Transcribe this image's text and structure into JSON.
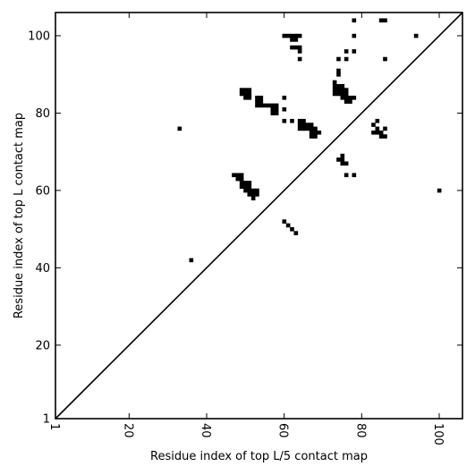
{
  "chart_data": {
    "type": "scatter",
    "title": "",
    "xlabel": "Residue index of top L/5 contact map",
    "ylabel": "Residue index of top L contact map",
    "xlim": [
      1,
      106
    ],
    "ylim": [
      1,
      106
    ],
    "xticks": [
      1,
      20,
      40,
      60,
      80,
      100
    ],
    "yticks": [
      1,
      20,
      40,
      60,
      80,
      100
    ],
    "xtick_labels": [
      "1",
      "20",
      "40",
      "60",
      "80",
      "100"
    ],
    "ytick_labels": [
      "1",
      "20",
      "40",
      "60",
      "80",
      "100"
    ],
    "grid": false,
    "diagonal": true,
    "marker_color": "#000000",
    "points": [
      [
        33,
        76
      ],
      [
        36,
        42
      ],
      [
        60,
        52
      ],
      [
        61,
        51
      ],
      [
        62,
        50
      ],
      [
        63,
        49
      ],
      [
        100,
        60
      ],
      [
        94,
        100
      ],
      [
        86,
        104
      ],
      [
        85,
        104
      ],
      [
        78,
        104
      ],
      [
        78,
        100
      ],
      [
        78,
        96
      ],
      [
        76,
        96
      ],
      [
        76,
        94
      ],
      [
        74,
        94
      ],
      [
        86,
        94
      ],
      [
        60,
        100
      ],
      [
        61,
        100
      ],
      [
        62,
        100
      ],
      [
        63,
        100
      ],
      [
        64,
        100
      ],
      [
        62,
        99
      ],
      [
        63,
        99
      ],
      [
        62,
        97
      ],
      [
        63,
        97
      ],
      [
        64,
        97
      ],
      [
        64,
        96
      ],
      [
        64,
        94
      ],
      [
        74,
        91
      ],
      [
        74,
        90
      ],
      [
        73,
        88
      ],
      [
        73,
        87
      ],
      [
        74,
        87
      ],
      [
        75,
        87
      ],
      [
        73,
        86
      ],
      [
        74,
        86
      ],
      [
        75,
        86
      ],
      [
        76,
        86
      ],
      [
        73,
        85
      ],
      [
        74,
        85
      ],
      [
        75,
        85
      ],
      [
        76,
        85
      ],
      [
        76,
        84
      ],
      [
        77,
        84
      ],
      [
        78,
        84
      ],
      [
        75,
        84
      ],
      [
        76,
        83
      ],
      [
        77,
        83
      ],
      [
        49,
        86
      ],
      [
        50,
        86
      ],
      [
        51,
        86
      ],
      [
        49,
        85
      ],
      [
        50,
        85
      ],
      [
        51,
        85
      ],
      [
        50,
        84
      ],
      [
        51,
        84
      ],
      [
        53,
        84
      ],
      [
        54,
        84
      ],
      [
        53,
        83
      ],
      [
        54,
        83
      ],
      [
        53,
        82
      ],
      [
        54,
        82
      ],
      [
        55,
        82
      ],
      [
        56,
        82
      ],
      [
        57,
        82
      ],
      [
        58,
        82
      ],
      [
        57,
        81
      ],
      [
        58,
        81
      ],
      [
        57,
        80
      ],
      [
        58,
        80
      ],
      [
        60,
        84
      ],
      [
        60,
        81
      ],
      [
        60,
        78
      ],
      [
        62,
        78
      ],
      [
        64,
        78
      ],
      [
        65,
        78
      ],
      [
        64,
        77
      ],
      [
        65,
        77
      ],
      [
        66,
        77
      ],
      [
        67,
        77
      ],
      [
        64,
        76
      ],
      [
        65,
        76
      ],
      [
        66,
        76
      ],
      [
        67,
        76
      ],
      [
        68,
        76
      ],
      [
        67,
        75
      ],
      [
        68,
        75
      ],
      [
        69,
        75
      ],
      [
        67,
        74
      ],
      [
        68,
        74
      ],
      [
        74,
        68
      ],
      [
        75,
        68
      ],
      [
        75,
        69
      ],
      [
        75,
        67
      ],
      [
        76,
        67
      ],
      [
        76,
        64
      ],
      [
        78,
        64
      ],
      [
        84,
        78
      ],
      [
        83,
        77
      ],
      [
        84,
        76
      ],
      [
        86,
        76
      ],
      [
        83,
        75
      ],
      [
        84,
        75
      ],
      [
        85,
        75
      ],
      [
        85,
        74
      ],
      [
        86,
        74
      ],
      [
        47,
        64
      ],
      [
        48,
        64
      ],
      [
        49,
        64
      ],
      [
        48,
        63
      ],
      [
        49,
        63
      ],
      [
        49,
        62
      ],
      [
        50,
        62
      ],
      [
        51,
        62
      ],
      [
        49,
        61
      ],
      [
        50,
        61
      ],
      [
        51,
        61
      ],
      [
        50,
        60
      ],
      [
        51,
        60
      ],
      [
        52,
        60
      ],
      [
        53,
        60
      ],
      [
        51,
        59
      ],
      [
        52,
        59
      ],
      [
        53,
        59
      ],
      [
        52,
        58
      ]
    ]
  }
}
